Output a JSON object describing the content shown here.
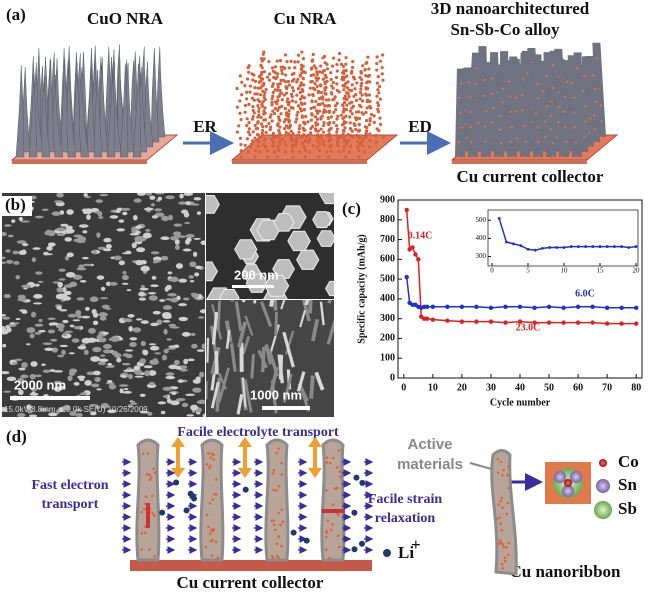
{
  "panel_a": {
    "label": "(a)",
    "stage_1": "CuO NRA",
    "stage_2": "Cu NRA",
    "stage_3_line1": "3D nanoarchitectured",
    "stage_3_line2": "Sn-Sb-Co alloy",
    "step_1": "ER",
    "step_2": "ED",
    "collector": "Cu current collector"
  },
  "panel_b": {
    "label": "(b)",
    "scale_main": "2000 nm",
    "scale_top": "200 nm",
    "scale_bottom": "1000 nm",
    "footer": "15.0kV 8.8mm x10.0k SE(U) 10/26/2009"
  },
  "panel_c_label": "(c)",
  "chart_data": {
    "type": "line",
    "y_label": "Specific capacity (mAh/g)",
    "x_label": "Cycle number",
    "x": [
      1,
      2,
      3,
      4,
      5,
      6,
      7,
      8,
      10,
      15,
      20,
      25,
      30,
      35,
      40,
      45,
      50,
      55,
      60,
      65,
      70,
      75,
      80
    ],
    "series": [
      {
        "color": "#e02020",
        "values": [
          850,
          650,
          660,
          625,
          600,
          310,
          300,
          300,
          295,
          290,
          285,
          285,
          285,
          280,
          285,
          280,
          280,
          280,
          280,
          280,
          275,
          275,
          275
        ]
      },
      {
        "color": "#2030d0",
        "values": [
          510,
          380,
          370,
          370,
          360,
          355,
          360,
          360,
          360,
          360,
          360,
          360,
          355,
          360,
          360,
          355,
          360,
          355,
          360,
          360,
          355,
          355,
          355
        ]
      }
    ],
    "annotations": [
      {
        "text": "0.14C",
        "color": "#e02020"
      },
      {
        "text": "6.0C",
        "color": "#2030d0"
      },
      {
        "text": "23.0C",
        "color": "#e02020"
      }
    ],
    "xlim": [
      -2,
      82
    ],
    "xticks": [
      0,
      10,
      20,
      30,
      40,
      50,
      60,
      70,
      80
    ],
    "ylim": [
      0,
      900
    ],
    "yticks": [
      0,
      100,
      200,
      300,
      400,
      500,
      600,
      700,
      800,
      900
    ],
    "inset": {
      "x": [
        1,
        2,
        3,
        4,
        5,
        6,
        7,
        8,
        9,
        10,
        11,
        12,
        13,
        14,
        15,
        16,
        17,
        18,
        19,
        20
      ],
      "values": [
        510,
        380,
        370,
        360,
        340,
        335,
        345,
        350,
        350,
        350,
        355,
        355,
        355,
        355,
        355,
        355,
        355,
        355,
        350,
        355
      ],
      "color": "#2030d0",
      "xlim": [
        0,
        20
      ],
      "xticks": [
        0,
        5,
        10,
        15,
        20
      ],
      "ylim": [
        270,
        540
      ],
      "yticks": [
        300,
        400,
        500
      ]
    }
  },
  "panel_d": {
    "label": "(d)",
    "electrolyte": "Facile electrolyte transport",
    "electron_line1": "Fast  electron",
    "electron_line2": "transport",
    "strain_line1": "Facile strain",
    "strain_line2": "relaxation",
    "collector": "Cu current collector",
    "ion": "Li",
    "ion_charge": "+",
    "active_line1": "Active",
    "active_line2": "materials",
    "co": "Co",
    "sn": "Sn",
    "sb": "Sb",
    "ribbon": "Cu nanoribbon"
  }
}
